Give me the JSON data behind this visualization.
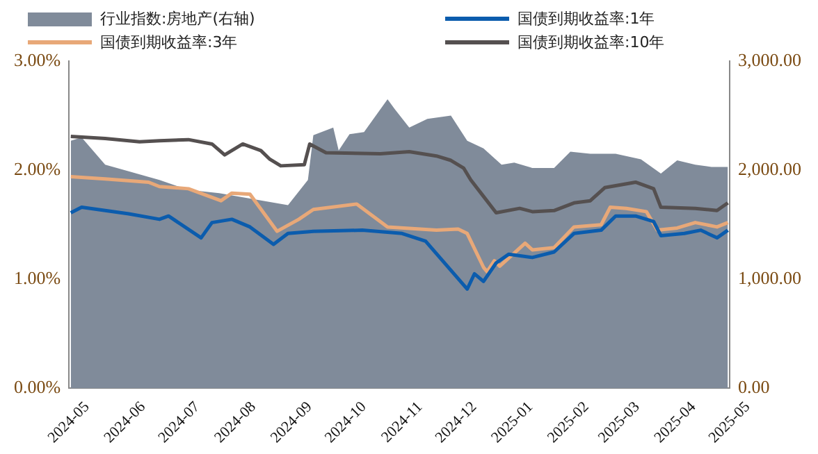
{
  "chart_data": {
    "type": "line",
    "legend": "top",
    "grid": false,
    "marker": "none",
    "line_style": "solid",
    "xlim": [
      "2024-05-01",
      "2025-05-01"
    ],
    "xticks": [
      "2024-05",
      "2024-06",
      "2024-07",
      "2024-08",
      "2024-09",
      "2024-10",
      "2024-11",
      "2024-12",
      "2025-01",
      "2025-02",
      "2025-03",
      "2025-04",
      "2025-05"
    ],
    "ylim": [
      0,
      3
    ],
    "yticks": [
      {
        "value": 0,
        "label": "0.00%"
      },
      {
        "value": 1,
        "label": "1.00%"
      },
      {
        "value": 2,
        "label": "2.00%"
      },
      {
        "value": 3,
        "label": "3.00%"
      }
    ],
    "y2lim": [
      0,
      3000
    ],
    "y2ticks": [
      {
        "value": 0,
        "label": "0.00"
      },
      {
        "value": 1000,
        "label": "1,000.00"
      },
      {
        "value": 2000,
        "label": "2,000.00"
      },
      {
        "value": 3000,
        "label": "3,000.00"
      }
    ],
    "series": [
      {
        "name": "行业指数:房地产(右轴)",
        "type": "area",
        "axis": "y2",
        "color": "#808b9a",
        "x": [
          "2024-05-02",
          "2024-05-08",
          "2024-05-21",
          "2024-06-03",
          "2024-06-20",
          "2024-07-06",
          "2024-07-23",
          "2024-08-09",
          "2024-08-30",
          "2024-09-10",
          "2024-09-13",
          "2024-09-24",
          "2024-09-27",
          "2024-10-03",
          "2024-10-11",
          "2024-10-24",
          "2024-10-28",
          "2024-11-05",
          "2024-11-15",
          "2024-11-28",
          "2024-12-07",
          "2024-12-16",
          "2024-12-26",
          "2025-01-02",
          "2025-01-12",
          "2025-01-24",
          "2025-02-02",
          "2025-02-13",
          "2025-02-27",
          "2025-03-13",
          "2025-03-24",
          "2025-04-02",
          "2025-04-12",
          "2025-04-21",
          "2025-04-30"
        ],
        "values": [
          2270,
          2300,
          2050,
          1990,
          1910,
          1820,
          1790,
          1740,
          1680,
          1910,
          2320,
          2390,
          2180,
          2330,
          2350,
          2650,
          2560,
          2390,
          2470,
          2500,
          2270,
          2200,
          2050,
          2070,
          2020,
          2020,
          2170,
          2150,
          2150,
          2100,
          1970,
          2090,
          2050,
          2030,
          2030
        ]
      },
      {
        "name": "国债到期收益率:1年",
        "color": "#0b5cad",
        "x": [
          "2024-05-02",
          "2024-05-08",
          "2024-06-03",
          "2024-06-20",
          "2024-06-25",
          "2024-07-13",
          "2024-07-19",
          "2024-07-30",
          "2024-08-09",
          "2024-08-22",
          "2024-08-30",
          "2024-09-13",
          "2024-10-10",
          "2024-11-01",
          "2024-11-14",
          "2024-12-07",
          "2024-12-11",
          "2024-12-16",
          "2024-12-23",
          "2024-12-30",
          "2025-01-12",
          "2025-01-24",
          "2025-02-04",
          "2025-02-19",
          "2025-02-27",
          "2025-03-10",
          "2025-03-20",
          "2025-03-24",
          "2025-04-06",
          "2025-04-15",
          "2025-04-24",
          "2025-04-30"
        ],
        "values": [
          1.61,
          1.66,
          1.6,
          1.55,
          1.58,
          1.38,
          1.52,
          1.55,
          1.48,
          1.32,
          1.42,
          1.44,
          1.45,
          1.42,
          1.35,
          0.91,
          1.05,
          0.98,
          1.15,
          1.23,
          1.2,
          1.25,
          1.42,
          1.45,
          1.58,
          1.58,
          1.53,
          1.4,
          1.42,
          1.45,
          1.38,
          1.45
        ]
      },
      {
        "name": "国债到期收益率:3年",
        "color": "#e8a878",
        "x": [
          "2024-05-02",
          "2024-05-21",
          "2024-06-14",
          "2024-06-20",
          "2024-07-06",
          "2024-07-24",
          "2024-07-30",
          "2024-08-09",
          "2024-08-24",
          "2024-09-05",
          "2024-09-13",
          "2024-10-07",
          "2024-10-24",
          "2024-11-20",
          "2024-12-02",
          "2024-12-07",
          "2024-12-16",
          "2024-12-18",
          "2024-12-22",
          "2024-12-25",
          "2025-01-08",
          "2025-01-12",
          "2025-01-24",
          "2025-02-04",
          "2025-02-19",
          "2025-02-24",
          "2025-03-05",
          "2025-03-16",
          "2025-03-22",
          "2025-04-02",
          "2025-04-12",
          "2025-04-24",
          "2025-04-30"
        ],
        "values": [
          1.94,
          1.92,
          1.89,
          1.85,
          1.83,
          1.72,
          1.79,
          1.78,
          1.44,
          1.55,
          1.64,
          1.69,
          1.48,
          1.45,
          1.46,
          1.42,
          1.11,
          1.07,
          1.17,
          1.12,
          1.33,
          1.27,
          1.29,
          1.48,
          1.5,
          1.66,
          1.65,
          1.62,
          1.45,
          1.47,
          1.52,
          1.48,
          1.52
        ]
      },
      {
        "name": "国债到期收益率:10年",
        "color": "#555050",
        "x": [
          "2024-05-02",
          "2024-05-21",
          "2024-06-09",
          "2024-06-20",
          "2024-07-06",
          "2024-07-19",
          "2024-07-26",
          "2024-08-05",
          "2024-08-15",
          "2024-08-20",
          "2024-08-26",
          "2024-09-08",
          "2024-09-11",
          "2024-09-20",
          "2024-10-20",
          "2024-11-05",
          "2024-11-20",
          "2024-11-28",
          "2024-12-05",
          "2024-12-09",
          "2024-12-16",
          "2024-12-23",
          "2025-01-05",
          "2025-01-12",
          "2025-01-24",
          "2025-02-04",
          "2025-02-13",
          "2025-02-21",
          "2025-03-10",
          "2025-03-20",
          "2025-03-24",
          "2025-04-12",
          "2025-04-24",
          "2025-04-30"
        ],
        "values": [
          2.31,
          2.29,
          2.26,
          2.27,
          2.28,
          2.24,
          2.14,
          2.24,
          2.18,
          2.1,
          2.04,
          2.05,
          2.24,
          2.16,
          2.15,
          2.17,
          2.13,
          2.09,
          2.02,
          1.91,
          1.76,
          1.61,
          1.65,
          1.62,
          1.63,
          1.7,
          1.72,
          1.84,
          1.89,
          1.83,
          1.66,
          1.65,
          1.63,
          1.7
        ]
      }
    ]
  }
}
